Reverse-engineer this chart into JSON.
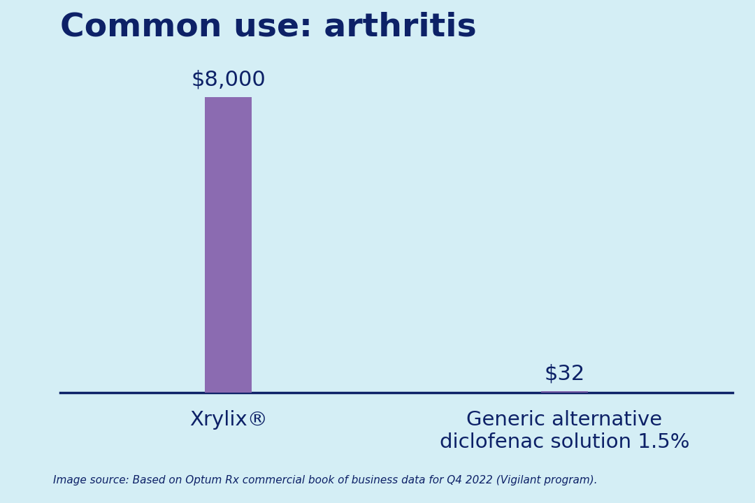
{
  "title": "Common use: arthritis",
  "categories": [
    "Xrylix®",
    "Generic alternative\ndiclofenac solution 1.5%"
  ],
  "values": [
    8000,
    32
  ],
  "bar_colors": [
    "#8B6BB1",
    "#7B5EA7"
  ],
  "value_labels": [
    "$8,000",
    "$32"
  ],
  "background_color": "#D4EEF5",
  "title_color": "#0D2167",
  "label_color": "#0D2167",
  "axis_line_color": "#0D2167",
  "footnote": "Image source: Based on Optum Rx commercial book of business data for Q4 2022 (Vigilant program).",
  "title_fontsize": 34,
  "label_fontsize": 21,
  "value_fontsize": 22,
  "footnote_fontsize": 11,
  "ylim": [
    0,
    9000
  ],
  "bar_width": 0.28,
  "x_positions": [
    1,
    3
  ],
  "xlim": [
    0,
    4
  ]
}
